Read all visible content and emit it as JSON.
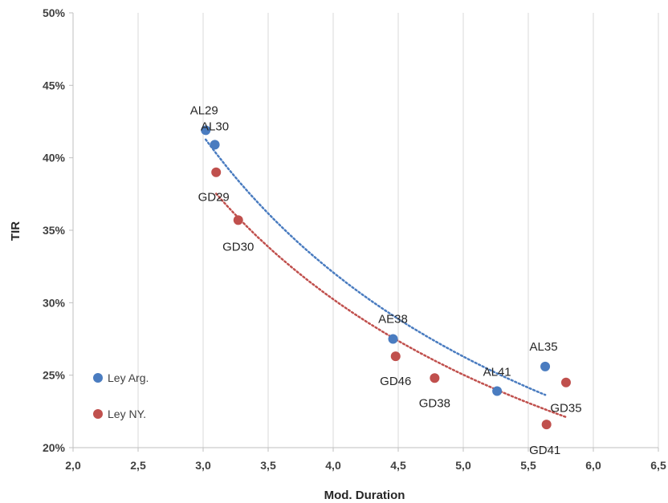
{
  "chart_data": {
    "type": "scatter",
    "xlabel": "Mod. Duration",
    "ylabel": "TIR",
    "xlim": [
      2.0,
      6.5
    ],
    "ylim": [
      20,
      50
    ],
    "xticks": [
      "2,0",
      "2,5",
      "3,0",
      "3,5",
      "4,0",
      "4,5",
      "5,0",
      "5,5",
      "6,0",
      "6,5"
    ],
    "yticks": [
      "20%",
      "25%",
      "30%",
      "35%",
      "40%",
      "45%",
      "50%"
    ],
    "grid": "vertical",
    "legend_placement": "left",
    "series": [
      {
        "name": "Ley Arg.",
        "color": "#4a7cc0",
        "trendline": "dotted",
        "points": [
          {
            "label": "AL29",
            "x": 3.02,
            "y": 41.9
          },
          {
            "label": "AL30",
            "x": 3.09,
            "y": 40.9
          },
          {
            "label": "AE38",
            "x": 4.46,
            "y": 27.5
          },
          {
            "label": "AL41",
            "x": 5.26,
            "y": 23.9
          },
          {
            "label": "AL35",
            "x": 5.63,
            "y": 25.6
          }
        ]
      },
      {
        "name": "Ley NY.",
        "color": "#c0504d",
        "trendline": "dotted",
        "points": [
          {
            "label": "GD29",
            "x": 3.1,
            "y": 39.0
          },
          {
            "label": "GD30",
            "x": 3.27,
            "y": 35.7
          },
          {
            "label": "GD46",
            "x": 4.48,
            "y": 26.3
          },
          {
            "label": "GD38",
            "x": 4.78,
            "y": 24.8
          },
          {
            "label": "GD35",
            "x": 5.79,
            "y": 24.5
          },
          {
            "label": "GD41",
            "x": 5.64,
            "y": 21.6
          }
        ]
      }
    ]
  }
}
